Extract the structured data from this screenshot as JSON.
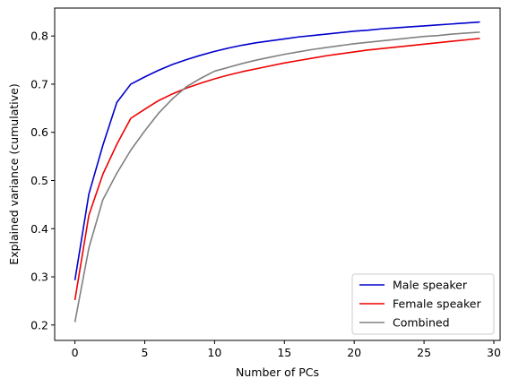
{
  "chart_data": {
    "type": "line",
    "xlabel": "Number of PCs",
    "ylabel": "Explained variance (cumulative)",
    "xlim": [
      -1.45,
      30.45
    ],
    "ylim": [
      0.168,
      0.858
    ],
    "xticks": [
      0,
      5,
      10,
      15,
      20,
      25,
      30
    ],
    "yticks": [
      0.2,
      0.3,
      0.4,
      0.5,
      0.6,
      0.7,
      0.8
    ],
    "ytick_labels": [
      "0.2",
      "0.3",
      "0.4",
      "0.5",
      "0.6",
      "0.7",
      "0.8"
    ],
    "grid": false,
    "legend_position": "lower-right",
    "x": [
      0,
      1,
      2,
      3,
      4,
      5,
      6,
      7,
      8,
      9,
      10,
      11,
      12,
      13,
      14,
      15,
      16,
      17,
      18,
      19,
      20,
      21,
      22,
      23,
      24,
      25,
      26,
      27,
      28,
      29
    ],
    "series": [
      {
        "name": "Male speaker",
        "color": "#0000cc",
        "values": [
          0.293,
          0.472,
          0.573,
          0.662,
          0.7,
          0.715,
          0.729,
          0.741,
          0.751,
          0.76,
          0.768,
          0.775,
          0.781,
          0.786,
          0.79,
          0.794,
          0.798,
          0.801,
          0.804,
          0.807,
          0.81,
          0.812,
          0.815,
          0.817,
          0.819,
          0.821,
          0.823,
          0.825,
          0.827,
          0.829
        ]
      },
      {
        "name": "Female speaker",
        "color": "#ee0000",
        "values": [
          0.252,
          0.428,
          0.513,
          0.575,
          0.629,
          0.648,
          0.666,
          0.68,
          0.692,
          0.702,
          0.711,
          0.719,
          0.726,
          0.732,
          0.738,
          0.744,
          0.749,
          0.754,
          0.759,
          0.763,
          0.767,
          0.771,
          0.774,
          0.777,
          0.78,
          0.783,
          0.786,
          0.789,
          0.792,
          0.795
        ]
      },
      {
        "name": "Combined",
        "color": "#808080",
        "values": [
          0.206,
          0.36,
          0.46,
          0.515,
          0.563,
          0.603,
          0.64,
          0.67,
          0.695,
          0.712,
          0.727,
          0.735,
          0.743,
          0.75,
          0.756,
          0.762,
          0.767,
          0.772,
          0.776,
          0.78,
          0.784,
          0.787,
          0.79,
          0.793,
          0.796,
          0.799,
          0.801,
          0.804,
          0.806,
          0.808
        ]
      }
    ]
  }
}
